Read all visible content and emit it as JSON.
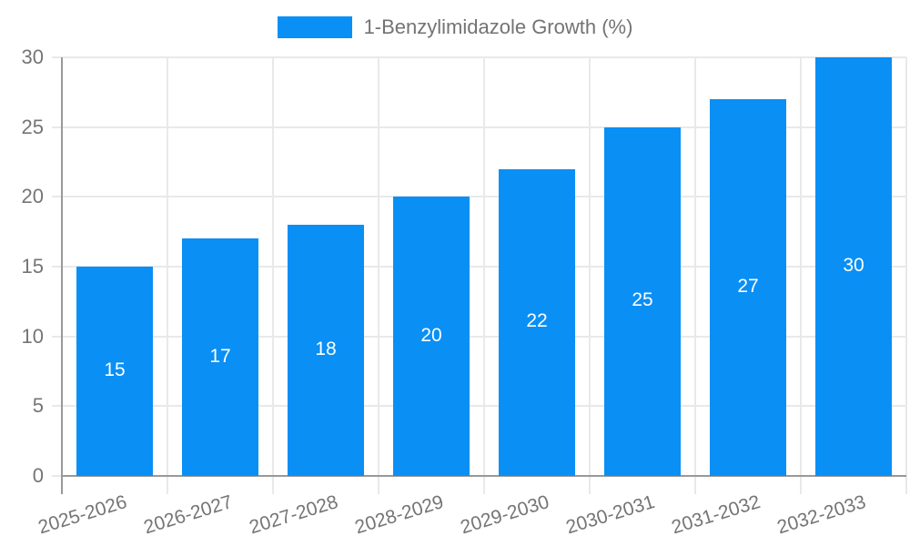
{
  "legend": {
    "label": "1-Benzylimidazole Growth (%)"
  },
  "chart_data": {
    "type": "bar",
    "title": "1-Benzylimidazole Growth (%)",
    "categories": [
      "2025-2026",
      "2026-2027",
      "2027-2028",
      "2028-2029",
      "2029-2030",
      "2030-2031",
      "2031-2032",
      "2032-2033"
    ],
    "values": [
      15,
      17,
      18,
      20,
      22,
      25,
      27,
      30
    ],
    "series_name": "1-Benzylimidazole Growth (%)",
    "xlabel": "",
    "ylabel": "",
    "ylim": [
      0,
      30
    ],
    "ytick_step": 5,
    "ytick_labels": [
      "0",
      "5",
      "10",
      "15",
      "20",
      "25",
      "30"
    ],
    "grid": true,
    "legend_position": "top-center",
    "value_labels": "inside-center",
    "colors": {
      "bar": "#0a8ff5",
      "grid": "#e9e9e9",
      "axis": "#999999",
      "tick_text": "#757575",
      "legend_text": "#737373",
      "value_text": "#ffffff",
      "background": "#ffffff"
    }
  }
}
